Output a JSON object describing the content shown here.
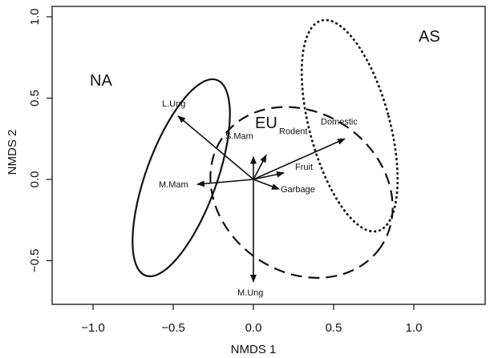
{
  "chart_data": {
    "type": "scatter",
    "title": "",
    "xlabel": "NMDS 1",
    "ylabel": "NMDS 2",
    "xlim": [
      -1.2,
      1.3
    ],
    "ylim": [
      -0.78,
      1.02
    ],
    "xticks": [
      {
        "value": -1.0,
        "label": "−1.0"
      },
      {
        "value": -0.5,
        "label": "−0.5"
      },
      {
        "value": 0.0,
        "label": "0.0"
      },
      {
        "value": 0.5,
        "label": "0.5"
      },
      {
        "value": 1.0,
        "label": "1.0"
      }
    ],
    "yticks": [
      {
        "value": -0.5,
        "label": "−0.5"
      },
      {
        "value": 0.0,
        "label": "0.0"
      },
      {
        "value": 0.5,
        "label": "0.5"
      },
      {
        "value": 1.0,
        "label": "1.0"
      }
    ],
    "grid": false,
    "vectors": [
      {
        "label": "L.Ung",
        "x": -0.47,
        "y": 0.39
      },
      {
        "label": "S.Mam",
        "x": 0.0,
        "y": 0.14
      },
      {
        "label": "Rodent",
        "x": 0.08,
        "y": 0.15
      },
      {
        "label": "Domestic",
        "x": 0.57,
        "y": 0.25
      },
      {
        "label": "M.Mam",
        "x": -0.35,
        "y": -0.03
      },
      {
        "label": "Fruit",
        "x": 0.19,
        "y": 0.04
      },
      {
        "label": "Garbage",
        "x": 0.16,
        "y": -0.06
      },
      {
        "label": "M.Ung",
        "x": 0.0,
        "y": -0.63
      }
    ],
    "ellipses": [
      {
        "label": "NA",
        "style": "solid",
        "center": [
          -0.45,
          0.01
        ],
        "semi_axes": [
          0.22,
          0.64
        ],
        "angle_deg": 20
      },
      {
        "label": "EU",
        "style": "dashed",
        "center": [
          0.3,
          -0.08
        ],
        "semi_axes": [
          0.6,
          0.49
        ],
        "angle_deg": 35
      },
      {
        "label": "AS",
        "style": "dotted",
        "center": [
          0.6,
          0.33
        ],
        "semi_axes": [
          0.25,
          0.67
        ],
        "angle_deg": -15
      }
    ]
  }
}
